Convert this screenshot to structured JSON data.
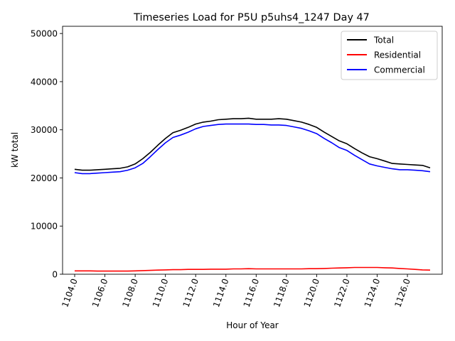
{
  "chart_data": {
    "type": "line",
    "title": "Timeseries Load for P5U p5uhs4_1247  Day 47",
    "xlabel": "Hour of Year",
    "ylabel": "kW total",
    "xlim": [
      1103.2,
      1128.3
    ],
    "ylim": [
      0,
      51500
    ],
    "x_ticks": [
      1104,
      1106,
      1108,
      1110,
      1112,
      1114,
      1116,
      1118,
      1120,
      1122,
      1124,
      1126
    ],
    "x_tick_labels": [
      "1104.0",
      "1106.0",
      "1108.0",
      "1110.0",
      "1112.0",
      "1114.0",
      "1116.0",
      "1118.0",
      "1120.0",
      "1122.0",
      "1124.0",
      "1126.0"
    ],
    "y_ticks": [
      0,
      10000,
      20000,
      30000,
      40000,
      50000
    ],
    "y_tick_labels": [
      "0",
      "10000",
      "20000",
      "30000",
      "40000",
      "50000"
    ],
    "legend_position": "top-right",
    "grid": false,
    "x": [
      1104.0,
      1104.5,
      1105.0,
      1105.5,
      1106.0,
      1106.5,
      1107.0,
      1107.5,
      1108.0,
      1108.5,
      1109.0,
      1109.5,
      1110.0,
      1110.5,
      1111.0,
      1111.5,
      1112.0,
      1112.5,
      1113.0,
      1113.5,
      1114.0,
      1114.5,
      1115.0,
      1115.5,
      1116.0,
      1116.5,
      1117.0,
      1117.5,
      1118.0,
      1118.5,
      1119.0,
      1119.5,
      1120.0,
      1120.5,
      1121.0,
      1121.5,
      1122.0,
      1122.5,
      1123.0,
      1123.5,
      1124.0,
      1124.5,
      1125.0,
      1125.5,
      1126.0,
      1126.5,
      1127.0,
      1127.5
    ],
    "series": [
      {
        "name": "Total",
        "color": "#000000",
        "values": [
          21800,
          21600,
          21600,
          21700,
          21800,
          21900,
          22000,
          22300,
          22900,
          24000,
          25300,
          26800,
          28200,
          29400,
          29900,
          30500,
          31200,
          31600,
          31800,
          32100,
          32200,
          32300,
          32300,
          32400,
          32200,
          32200,
          32200,
          32300,
          32200,
          31900,
          31600,
          31100,
          30500,
          29500,
          28600,
          27700,
          27100,
          26100,
          25200,
          24400,
          24000,
          23500,
          23000,
          22900,
          22800,
          22700,
          22600,
          22100
        ]
      },
      {
        "name": "Residential",
        "color": "#ff0000",
        "values": [
          700,
          700,
          700,
          650,
          650,
          650,
          650,
          650,
          700,
          750,
          800,
          850,
          900,
          950,
          950,
          1000,
          1000,
          1000,
          1050,
          1050,
          1050,
          1100,
          1100,
          1150,
          1100,
          1100,
          1100,
          1100,
          1100,
          1100,
          1100,
          1150,
          1150,
          1200,
          1250,
          1300,
          1350,
          1400,
          1400,
          1400,
          1400,
          1350,
          1300,
          1200,
          1100,
          1000,
          900,
          850
        ]
      },
      {
        "name": "Commercial",
        "color": "#0000ff",
        "values": [
          21100,
          20900,
          20900,
          21000,
          21100,
          21200,
          21300,
          21600,
          22100,
          23000,
          24400,
          25900,
          27300,
          28400,
          28900,
          29500,
          30200,
          30700,
          30900,
          31100,
          31200,
          31200,
          31200,
          31200,
          31100,
          31100,
          31000,
          31000,
          30900,
          30600,
          30300,
          29800,
          29200,
          28200,
          27300,
          26300,
          25700,
          24700,
          23800,
          22900,
          22500,
          22200,
          21900,
          21700,
          21700,
          21600,
          21500,
          21300
        ]
      }
    ]
  }
}
